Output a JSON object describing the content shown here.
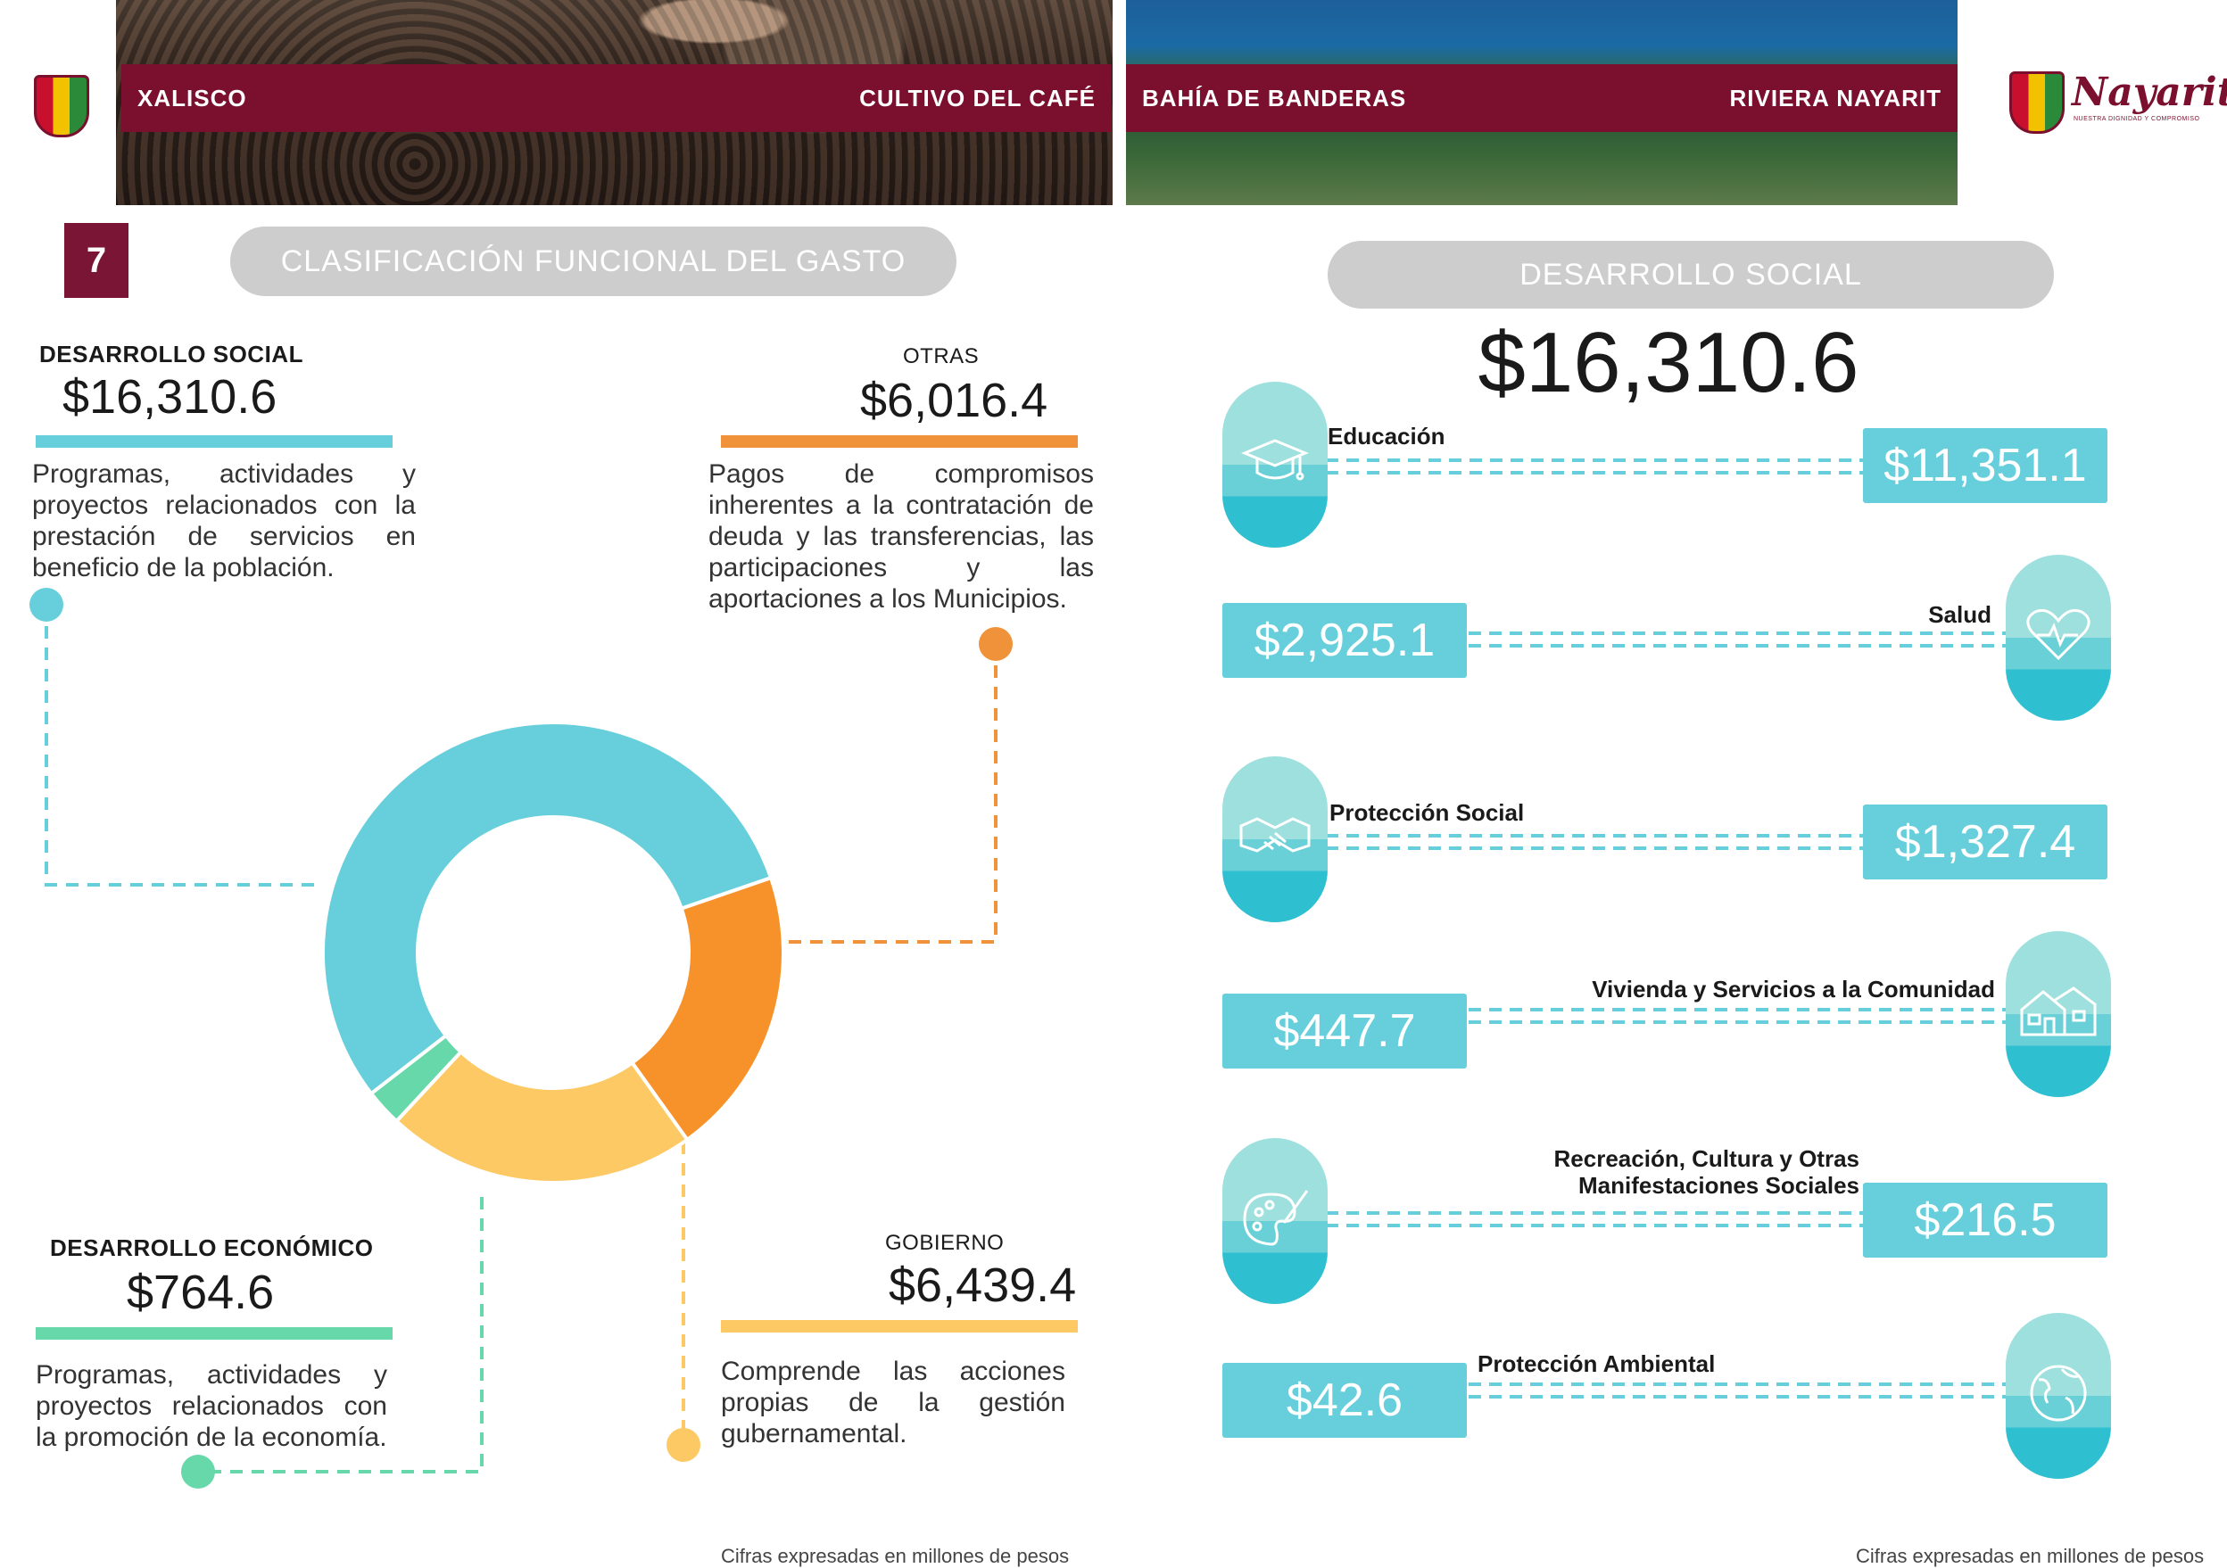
{
  "header": {
    "left_banner": {
      "left": "XALISCO",
      "right": "CULTIVO DEL CAFÉ"
    },
    "right_banner": {
      "left": "BAHÍA DE BANDERAS",
      "right": "RIVIERA NAYARIT"
    },
    "logo_text": "Nayarit",
    "logo_subtitle": "NUESTRA DIGNIDAD Y COMPROMISO"
  },
  "page_number": "7",
  "left": {
    "title": "CLASIFICACIÓN FUNCIONAL DEL GASTO",
    "categories": [
      {
        "name": "DESARROLLO SOCIAL",
        "amount": "$16,310.6",
        "description": "Programas, actividades y proyectos relacionados con la prestación de servicios en beneficio de la población."
      },
      {
        "name": "OTRAS",
        "amount": "$6,016.4",
        "description": "Pagos de compromisos inherentes a la contratación de deuda y las transferencias, las participaciones y las aportaciones a los Municipios."
      },
      {
        "name": "DESARROLLO ECONÓMICO",
        "amount": "$764.6",
        "description": "Programas, actividades y proyectos relacionados con la promoción de la economía."
      },
      {
        "name": "GOBIERNO",
        "amount": "$6,439.4",
        "description": "Comprende las acciones propias de la gestión gubernamental."
      }
    ],
    "note": "Cifras expresadas en millones de pesos"
  },
  "right": {
    "title": "DESARROLLO SOCIAL",
    "total": "$16,310.6",
    "items": [
      {
        "label": "Educación",
        "amount": "$11,351.1",
        "icon": "graduation-cap-icon"
      },
      {
        "label": "Salud",
        "amount": "$2,925.1",
        "icon": "heart-pulse-icon"
      },
      {
        "label": "Protección Social",
        "amount": "$1,327.4",
        "icon": "handshake-icon"
      },
      {
        "label": "Vivienda y Servicios a la Comunidad",
        "amount": "$447.7",
        "icon": "houses-icon"
      },
      {
        "label": "Recreación, Cultura y Otras Manifestaciones Sociales",
        "amount": "$216.5",
        "icon": "palette-icon"
      },
      {
        "label": "Protección Ambiental",
        "amount": "$42.6",
        "icon": "globe-icon"
      }
    ],
    "note": "Cifras expresadas en millones de pesos"
  },
  "chart_data": {
    "type": "pie",
    "categories": [
      "DESARROLLO SOCIAL",
      "OTRAS",
      "GOBIERNO",
      "DESARROLLO ECONÓMICO"
    ],
    "values": [
      16310.6,
      6016.4,
      6439.4,
      764.6
    ],
    "colors": [
      "#66cfdb",
      "#f7922a",
      "#fdc964",
      "#66d8a9"
    ]
  },
  "colors": {
    "accent_maroon": "#7a0f2e",
    "teal": "#66cfdb",
    "orange": "#f7922a",
    "yellow": "#fdc964",
    "green": "#66d8a9",
    "pill_grey": "#cdcdcd"
  }
}
